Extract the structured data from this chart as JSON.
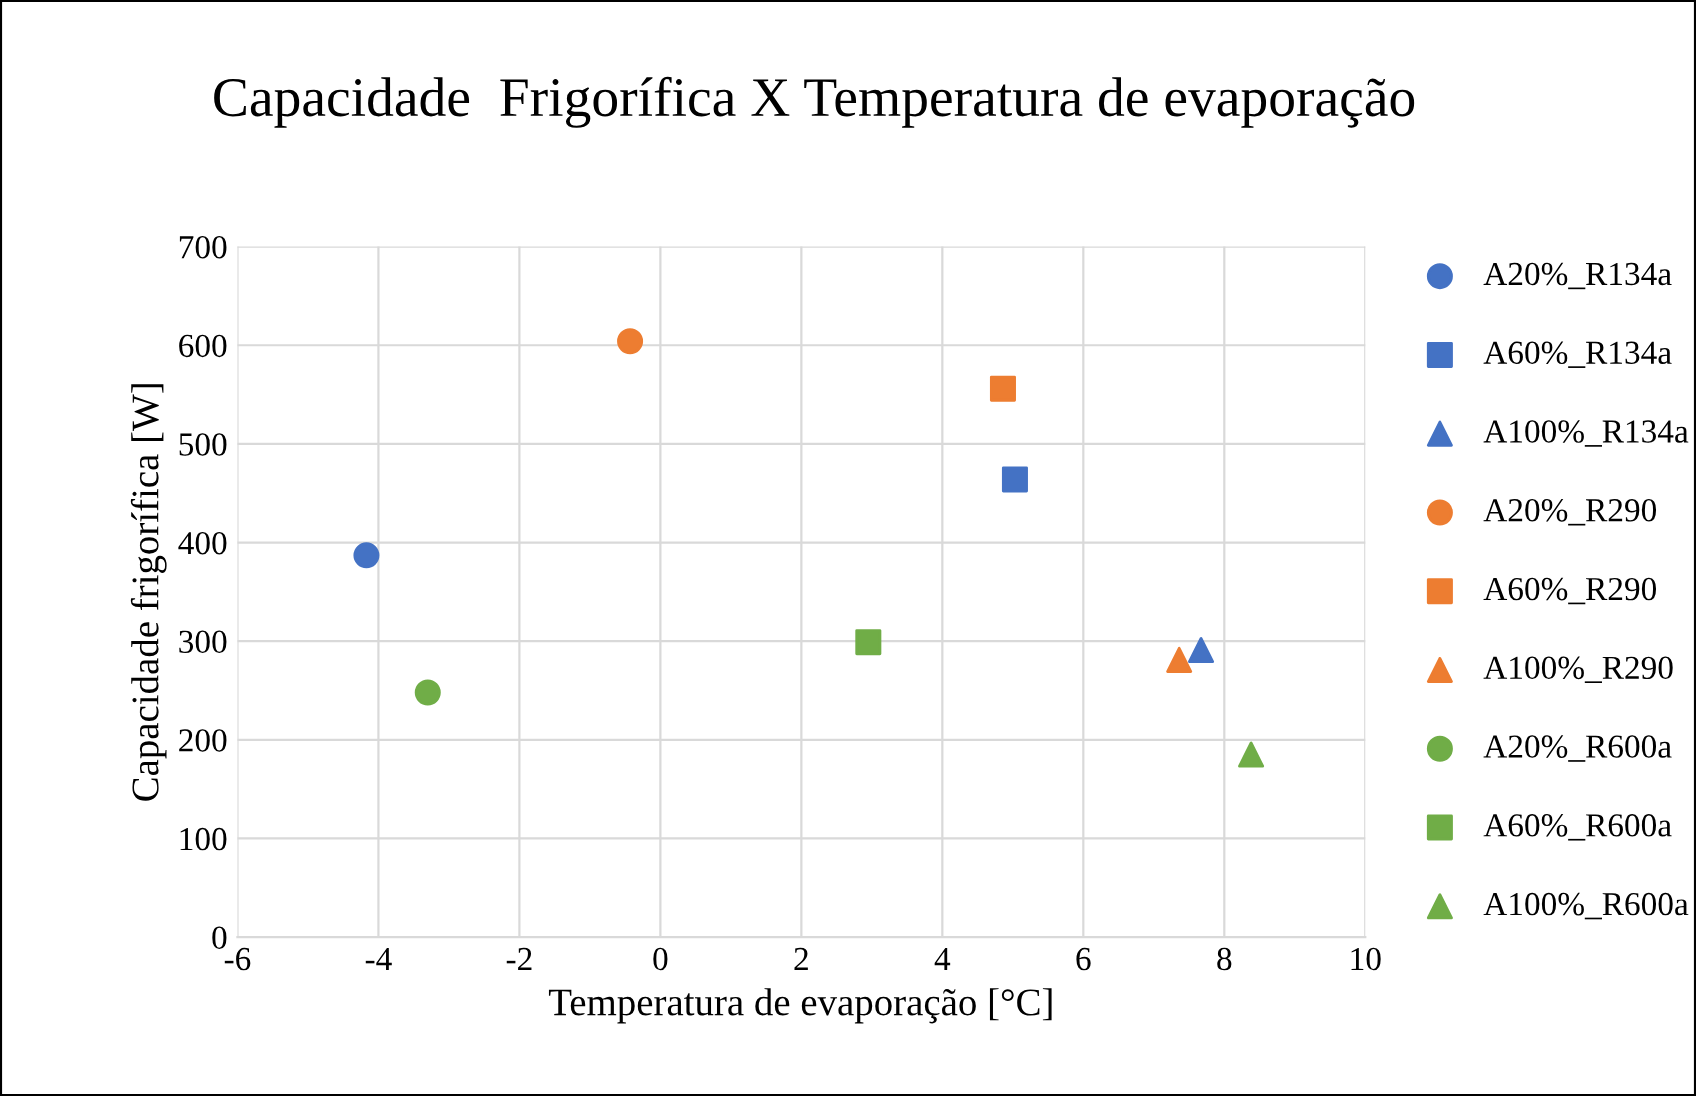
{
  "chart_data": {
    "type": "scatter",
    "title": "Capacidade  Frigorífica X Temperatura de evaporação",
    "xlabel": "Temperatura de evaporação [°C]",
    "ylabel": "Capacidade frigorífica [W]",
    "xlim": [
      -6,
      10
    ],
    "xticks": [
      -6,
      -4,
      -2,
      0,
      2,
      4,
      6,
      8,
      10
    ],
    "ylim": [
      0,
      700
    ],
    "yticks": [
      0,
      100,
      200,
      300,
      400,
      500,
      600,
      700
    ],
    "grid": true,
    "legend": "right",
    "series": [
      {
        "name": "A20%_R134a",
        "color": "#4472c4",
        "marker": "circle",
        "x": [
          -4.17
        ],
        "values": [
          387
        ]
      },
      {
        "name": "A60%_R134a",
        "color": "#4472c4",
        "marker": "square",
        "x": [
          5.03
        ],
        "values": [
          464
        ]
      },
      {
        "name": "A100%_R134a",
        "color": "#4472c4",
        "marker": "triangle",
        "x": [
          7.67
        ],
        "values": [
          291
        ]
      },
      {
        "name": "A20%_R290",
        "color": "#ed7d31",
        "marker": "circle",
        "x": [
          -0.43
        ],
        "values": [
          604
        ]
      },
      {
        "name": "A60%_R290",
        "color": "#ed7d31",
        "marker": "square",
        "x": [
          4.86
        ],
        "values": [
          556
        ]
      },
      {
        "name": "A100%_R290",
        "color": "#ed7d31",
        "marker": "triangle",
        "x": [
          7.36
        ],
        "values": [
          281
        ]
      },
      {
        "name": "A20%_R600a",
        "color": "#70ad47",
        "marker": "circle",
        "x": [
          -3.3
        ],
        "values": [
          248
        ]
      },
      {
        "name": "A60%_R600a",
        "color": "#70ad47",
        "marker": "square",
        "x": [
          2.95
        ],
        "values": [
          299
        ]
      },
      {
        "name": "A100%_R600a",
        "color": "#70ad47",
        "marker": "triangle",
        "x": [
          8.38
        ],
        "values": [
          185
        ]
      }
    ]
  }
}
